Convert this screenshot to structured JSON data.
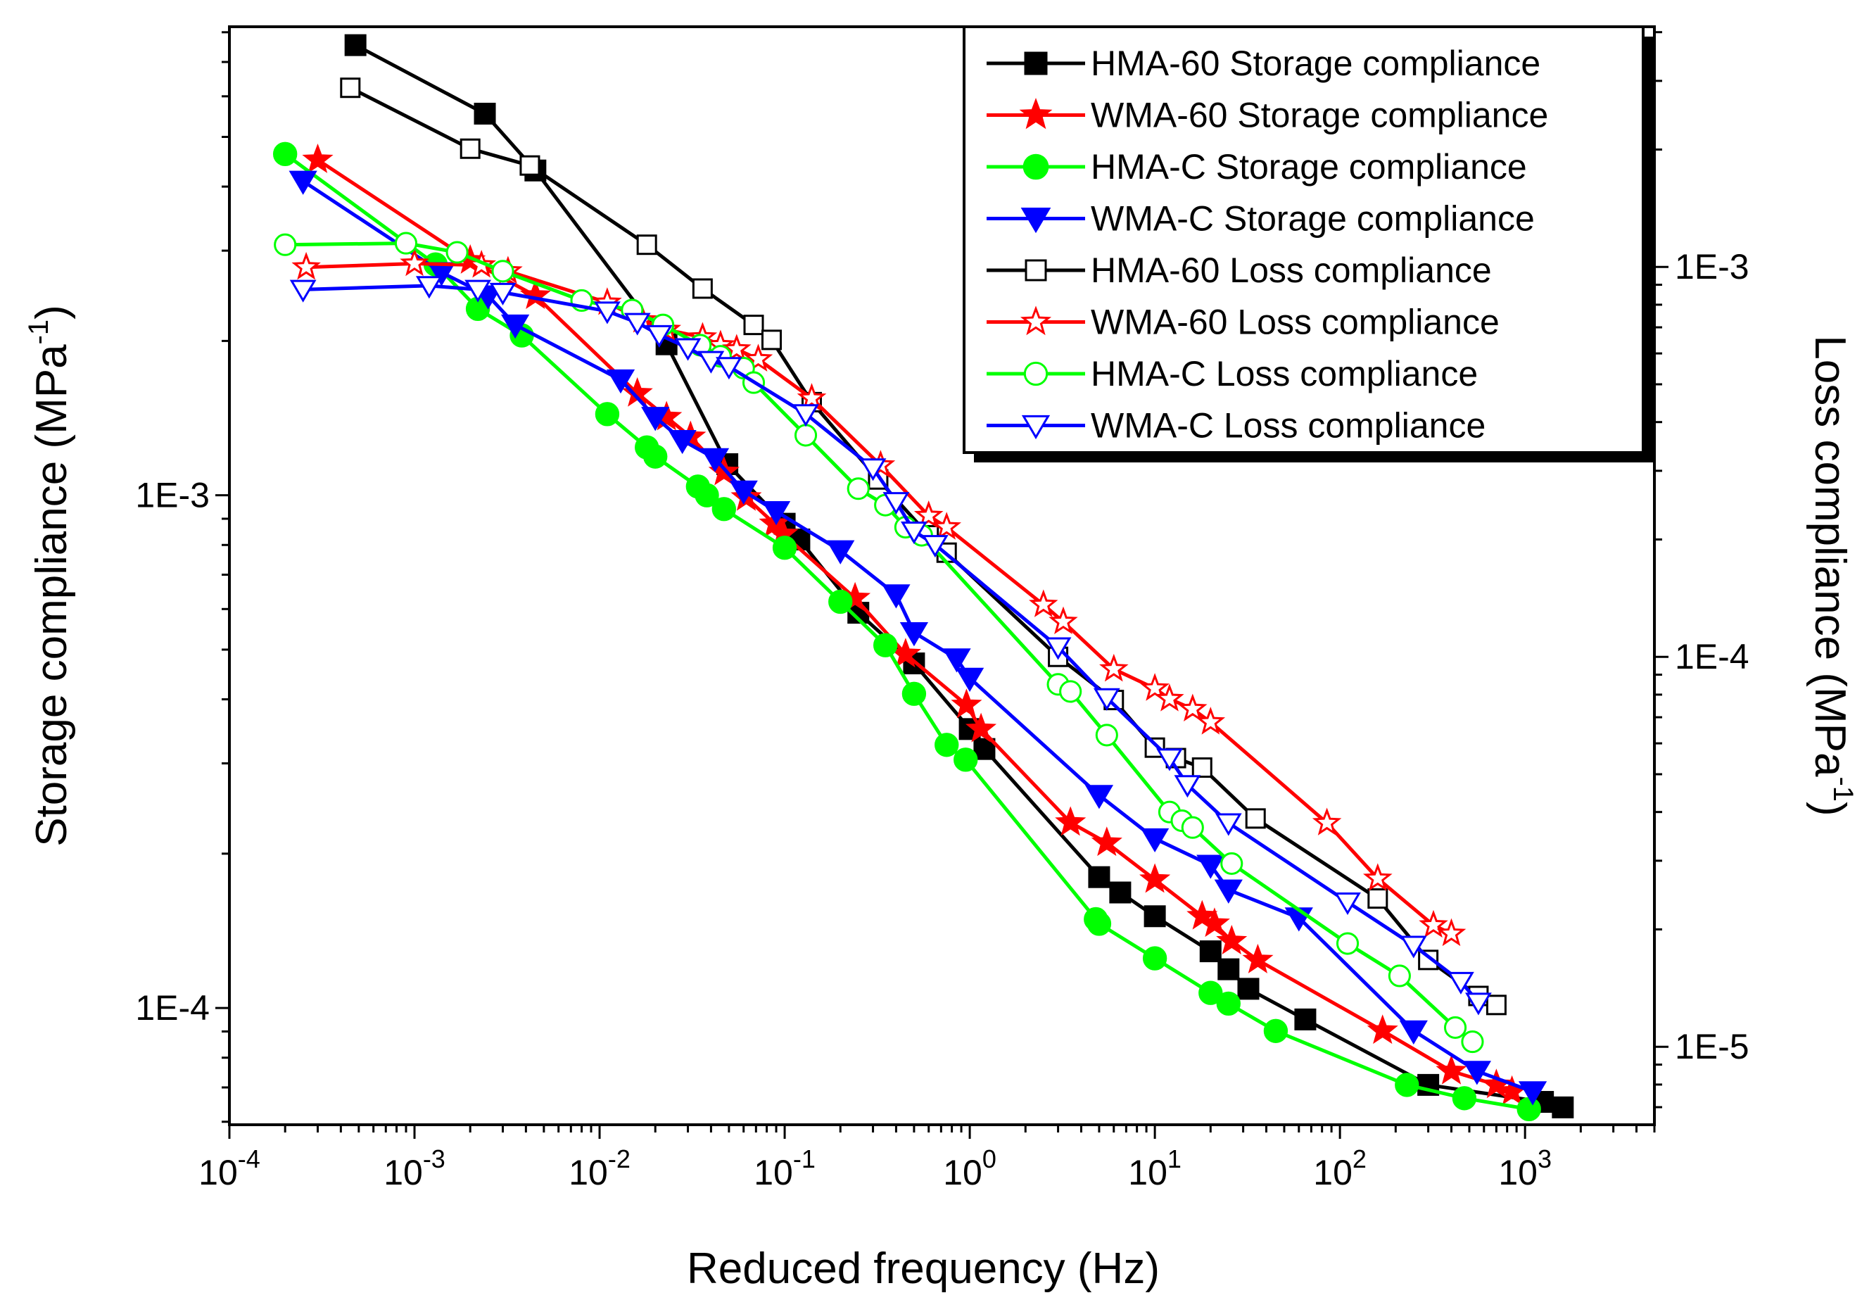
{
  "chart_data": {
    "type": "scatter",
    "title": "",
    "xlabel": "Reduced frequency (Hz)",
    "ylabel_left_main": "Storage compliance (MPa",
    "ylabel_right_main": "Loss compliance (MPa",
    "ylabel_sup": "-1",
    "ylabel_close": ")",
    "x_scale": "log",
    "xlim": [
      0.0001,
      5000
    ],
    "ylim_left": [
      5.92e-05,
      0.0082
    ],
    "ylim_right": [
      6.31e-06,
      0.00413
    ],
    "x_ticks": [
      {
        "value": 0.0001,
        "base": "10",
        "exp": "-4"
      },
      {
        "value": 0.001,
        "base": "10",
        "exp": "-3"
      },
      {
        "value": 0.01,
        "base": "10",
        "exp": "-2"
      },
      {
        "value": 0.1,
        "base": "10",
        "exp": "-1"
      },
      {
        "value": 1,
        "base": "10",
        "exp": "0"
      },
      {
        "value": 10,
        "base": "10",
        "exp": "1"
      },
      {
        "value": 100,
        "base": "10",
        "exp": "2"
      },
      {
        "value": 1000,
        "base": "10",
        "exp": "3"
      }
    ],
    "y_ticks_left": [
      {
        "value": 0.0001,
        "label": "1E-4"
      },
      {
        "value": 0.001,
        "label": "1E-3"
      }
    ],
    "y_ticks_right": [
      {
        "value": 1e-05,
        "label": "1E-5"
      },
      {
        "value": 0.0001,
        "label": "1E-4"
      },
      {
        "value": 0.001,
        "label": "1E-3"
      }
    ],
    "legend_position": "top-right",
    "series": [
      {
        "name": "HMA-60  Storage compliance",
        "axis": "left",
        "color": "#000000",
        "marker": "square",
        "filled": true,
        "points": [
          [
            0.00048,
            0.00755
          ],
          [
            0.0024,
            0.00555
          ],
          [
            0.0045,
            0.0043
          ],
          [
            0.023,
            0.00197
          ],
          [
            0.049,
            0.00115
          ],
          [
            0.1,
            0.00088
          ],
          [
            0.12,
            0.00082
          ],
          [
            0.25,
            0.00059
          ],
          [
            0.5,
            0.00047
          ],
          [
            1.0,
            0.00035
          ],
          [
            1.2,
            0.00032
          ],
          [
            5.0,
            0.00018
          ],
          [
            6.5,
            0.000168
          ],
          [
            10,
            0.000151
          ],
          [
            20,
            0.000129
          ],
          [
            25,
            0.000119
          ],
          [
            32,
            0.000109
          ],
          [
            65,
            9.5e-05
          ],
          [
            300,
            7.08e-05
          ],
          [
            1250,
            6.56e-05
          ],
          [
            1600,
            6.4e-05
          ]
        ]
      },
      {
        "name": "WMA-60  Storage compliance",
        "axis": "left",
        "color": "#ff0000",
        "marker": "star",
        "filled": true,
        "points": [
          [
            0.0003,
            0.00451
          ],
          [
            0.002,
            0.00287
          ],
          [
            0.0045,
            0.00245
          ],
          [
            0.016,
            0.00158
          ],
          [
            0.023,
            0.00142
          ],
          [
            0.031,
            0.0013
          ],
          [
            0.047,
            0.00111
          ],
          [
            0.062,
            0.00099
          ],
          [
            0.088,
            0.00088
          ],
          [
            0.098,
            0.00084
          ],
          [
            0.24,
            0.00063
          ],
          [
            0.45,
            0.00049
          ],
          [
            0.96,
            0.00039
          ],
          [
            1.15,
            0.00035
          ],
          [
            3.5,
            0.00023
          ],
          [
            5.5,
            0.00021
          ],
          [
            10,
            0.000178
          ],
          [
            18,
            0.000151
          ],
          [
            21,
            0.000146
          ],
          [
            26,
            0.000135
          ],
          [
            36,
            0.000124
          ],
          [
            170,
            9.03e-05
          ],
          [
            400,
            7.53e-05
          ],
          [
            700,
            7.08e-05
          ],
          [
            850,
            6.87e-05
          ]
        ]
      },
      {
        "name": "HMA-C  Storage compliance",
        "axis": "left",
        "color": "#00ff00",
        "marker": "circle",
        "filled": true,
        "points": [
          [
            0.0002,
            0.00463
          ],
          [
            0.0013,
            0.00282
          ],
          [
            0.0022,
            0.00231
          ],
          [
            0.0038,
            0.00205
          ],
          [
            0.011,
            0.00144
          ],
          [
            0.018,
            0.00124
          ],
          [
            0.02,
            0.00119
          ],
          [
            0.034,
            0.00104
          ],
          [
            0.038,
            0.001
          ],
          [
            0.047,
            0.00094
          ],
          [
            0.1,
            0.00079
          ],
          [
            0.2,
            0.00062
          ],
          [
            0.35,
            0.00051
          ],
          [
            0.5,
            0.00041
          ],
          [
            0.75,
            0.000326
          ],
          [
            0.95,
            0.000305
          ],
          [
            4.8,
            0.000149
          ],
          [
            5.0,
            0.000146
          ],
          [
            10,
            0.000125
          ],
          [
            20,
            0.000107
          ],
          [
            25,
            0.000102
          ],
          [
            45,
            9.02e-05
          ],
          [
            230,
            7.08e-05
          ],
          [
            470,
            6.67e-05
          ],
          [
            1050,
            6.35e-05
          ]
        ]
      },
      {
        "name": "WMA-C  Storage compliance",
        "axis": "left",
        "color": "#0000ff",
        "marker": "triangle-down",
        "filled": true,
        "points": [
          [
            0.00025,
            0.0041
          ],
          [
            0.0014,
            0.00272
          ],
          [
            0.0025,
            0.00245
          ],
          [
            0.0035,
            0.00215
          ],
          [
            0.013,
            0.00168
          ],
          [
            0.02,
            0.00142
          ],
          [
            0.028,
            0.00128
          ],
          [
            0.042,
            0.00118
          ],
          [
            0.06,
            0.00102
          ],
          [
            0.09,
            0.00093
          ],
          [
            0.2,
            0.00078
          ],
          [
            0.4,
            0.00064
          ],
          [
            0.5,
            0.00054
          ],
          [
            0.85,
            0.00048
          ],
          [
            1.0,
            0.00044
          ],
          [
            5.0,
            0.00026
          ],
          [
            10,
            0.000214
          ],
          [
            20,
            0.00019
          ],
          [
            25,
            0.00017
          ],
          [
            60,
            0.00015
          ],
          [
            250,
            9.03e-05
          ],
          [
            550,
            7.53e-05
          ],
          [
            1100,
            6.87e-05
          ]
        ]
      },
      {
        "name": "HMA-60 Loss compliance",
        "axis": "right",
        "color": "#000000",
        "marker": "square",
        "filled": false,
        "points": [
          [
            0.00045,
            0.00288
          ],
          [
            0.002,
            0.00201
          ],
          [
            0.0042,
            0.00182
          ],
          [
            0.018,
            0.00114
          ],
          [
            0.036,
            0.00088
          ],
          [
            0.068,
            0.00071
          ],
          [
            0.085,
            0.00065
          ],
          [
            0.14,
            0.00045
          ],
          [
            0.32,
            0.000285
          ],
          [
            0.6,
            0.000205
          ],
          [
            0.75,
            0.000185
          ],
          [
            3.0,
            0.0001
          ],
          [
            6.0,
            7.75e-05
          ],
          [
            10,
            5.85e-05
          ],
          [
            13,
            5.5e-05
          ],
          [
            18,
            5.2e-05
          ],
          [
            35,
            3.85e-05
          ],
          [
            160,
            2.4e-05
          ],
          [
            300,
            1.67e-05
          ],
          [
            560,
            1.35e-05
          ],
          [
            700,
            1.28e-05
          ]
        ]
      },
      {
        "name": "WMA-60 Loss compliance",
        "axis": "right",
        "color": "#ff0000",
        "marker": "star",
        "filled": false,
        "points": [
          [
            0.00026,
            0.000998
          ],
          [
            0.001,
            0.00102
          ],
          [
            0.0023,
            0.00101
          ],
          [
            0.0032,
            0.000975
          ],
          [
            0.011,
            0.00081
          ],
          [
            0.017,
            0.00073
          ],
          [
            0.023,
            0.00069
          ],
          [
            0.036,
            0.00066
          ],
          [
            0.045,
            0.00063
          ],
          [
            0.055,
            0.000615
          ],
          [
            0.072,
            0.00058
          ],
          [
            0.14,
            0.00046
          ],
          [
            0.33,
            0.00031
          ],
          [
            0.6,
            0.00023
          ],
          [
            0.75,
            0.000215
          ],
          [
            2.5,
            0.000136
          ],
          [
            3.2,
            0.000123
          ],
          [
            6.0,
            9.3e-05
          ],
          [
            10,
            8.3e-05
          ],
          [
            12,
            7.8e-05
          ],
          [
            16,
            7.35e-05
          ],
          [
            20,
            6.8e-05
          ],
          [
            85,
            3.75e-05
          ],
          [
            160,
            2.7e-05
          ],
          [
            320,
            2.05e-05
          ],
          [
            400,
            1.95e-05
          ]
        ]
      },
      {
        "name": "HMA-C Loss compliance",
        "axis": "right",
        "color": "#00ff00",
        "marker": "circle",
        "filled": false,
        "points": [
          [
            0.0002,
            0.00114
          ],
          [
            0.0009,
            0.00115
          ],
          [
            0.0017,
            0.00109
          ],
          [
            0.003,
            0.000975
          ],
          [
            0.008,
            0.00082
          ],
          [
            0.015,
            0.000775
          ],
          [
            0.022,
            0.00071
          ],
          [
            0.035,
            0.00063
          ],
          [
            0.045,
            0.00059
          ],
          [
            0.06,
            0.00055
          ],
          [
            0.068,
            0.000505
          ],
          [
            0.13,
            0.00037
          ],
          [
            0.25,
            0.00027
          ],
          [
            0.35,
            0.000245
          ],
          [
            0.45,
            0.000215
          ],
          [
            0.55,
            0.000205
          ],
          [
            3.0,
            8.5e-05
          ],
          [
            3.5,
            8.15e-05
          ],
          [
            5.5,
            6.3e-05
          ],
          [
            12,
            4e-05
          ],
          [
            14,
            3.8e-05
          ],
          [
            16,
            3.65e-05
          ],
          [
            26,
            2.95e-05
          ],
          [
            110,
            1.84e-05
          ],
          [
            210,
            1.52e-05
          ],
          [
            420,
            1.12e-05
          ],
          [
            520,
            1.03e-05
          ]
        ]
      },
      {
        "name": "WMA-C Loss compliance",
        "axis": "right",
        "color": "#0000ff",
        "marker": "triangle-down",
        "filled": false,
        "points": [
          [
            0.00025,
            0.000875
          ],
          [
            0.0012,
            0.000895
          ],
          [
            0.0022,
            0.000875
          ],
          [
            0.003,
            0.00086
          ],
          [
            0.011,
            0.00077
          ],
          [
            0.016,
            0.00072
          ],
          [
            0.021,
            0.00067
          ],
          [
            0.03,
            0.00062
          ],
          [
            0.04,
            0.000575
          ],
          [
            0.05,
            0.000555
          ],
          [
            0.13,
            0.00042
          ],
          [
            0.3,
            0.000305
          ],
          [
            0.4,
            0.00025
          ],
          [
            0.5,
            0.00021
          ],
          [
            0.65,
            0.000194
          ],
          [
            3.0,
            0.000106
          ],
          [
            5.5,
            7.85e-05
          ],
          [
            12,
            5.5e-05
          ],
          [
            15,
            4.7e-05
          ],
          [
            25,
            3.75e-05
          ],
          [
            110,
            2.35e-05
          ],
          [
            250,
            1.82e-05
          ],
          [
            450,
            1.47e-05
          ],
          [
            560,
            1.3e-05
          ]
        ]
      }
    ]
  }
}
